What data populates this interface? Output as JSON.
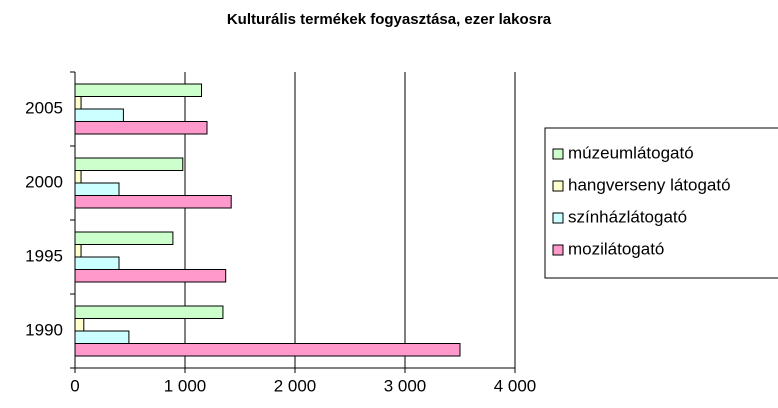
{
  "chart_data": {
    "type": "hbar",
    "title": "Kulturális termékek fogyasztása, ezer lakosra",
    "categories": [
      "1990",
      "1995",
      "2000",
      "2005"
    ],
    "series": [
      {
        "name": "múzeumlátogató",
        "color": "#ccffcc",
        "values": [
          1345,
          890,
          980,
          1150
        ]
      },
      {
        "name": "hangverseny látogató",
        "color": "#ffffcc",
        "values": [
          80,
          55,
          55,
          55
        ]
      },
      {
        "name": "színházlátogató",
        "color": "#ccffff",
        "values": [
          490,
          400,
          400,
          440
        ]
      },
      {
        "name": "mozilátogató",
        "color": "#ff99cc",
        "values": [
          3500,
          1370,
          1420,
          1200
        ]
      }
    ],
    "xlim": [
      0,
      4000
    ],
    "xticks": [
      0,
      {
        "value": 1000,
        "label": "1 000"
      },
      {
        "value": 2000,
        "label": "2 000"
      },
      {
        "value": 3000,
        "label": "3 000"
      },
      {
        "value": 4000,
        "label": "4 000"
      }
    ],
    "grid": true,
    "legend": "right"
  }
}
